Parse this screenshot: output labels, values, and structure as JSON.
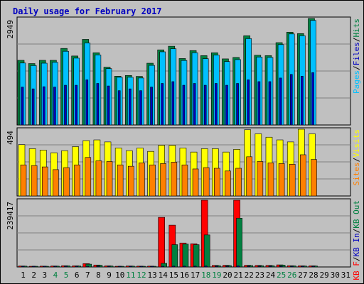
{
  "chart_data": {
    "type": "bar",
    "title": "Daily usage for February 2017",
    "categories": [
      "1",
      "2",
      "3",
      "4",
      "5",
      "6",
      "7",
      "8",
      "9",
      "10",
      "11",
      "12",
      "13",
      "14",
      "15",
      "16",
      "17",
      "18",
      "19",
      "20",
      "21",
      "22",
      "23",
      "24",
      "25",
      "26",
      "27",
      "28",
      "29",
      "30",
      "31"
    ],
    "weekend_days": [
      4,
      5,
      11,
      12,
      18,
      19,
      25,
      26
    ],
    "panels": [
      {
        "name": "pages-files-hits",
        "ymax_label": "2949",
        "ylim": [
          0,
          2949
        ],
        "axis_labels": [
          {
            "text": "Pages",
            "color": "#00c0ff"
          },
          {
            "text": "Files",
            "color": "#0000c0"
          },
          {
            "text": "Hits",
            "color": "#008040"
          }
        ],
        "series": [
          {
            "name": "Hits",
            "color": "#008040",
            "values": [
              1790,
              1700,
              1790,
              1790,
              2120,
              1910,
              2370,
              2000,
              1600,
              1350,
              1370,
              1345,
              1710,
              2080,
              2180,
              1840,
              2060,
              1920,
              2000,
              1830,
              1870,
              2470,
              1930,
              1920,
              2280,
              2570,
              2530,
              2950,
              0,
              0,
              0
            ]
          },
          {
            "name": "Files",
            "color": "#00c0ff",
            "values": [
              1715,
              1645,
              1710,
              1735,
              2040,
              1850,
              2270,
              1940,
              1560,
              1320,
              1320,
              1300,
              1650,
              2025,
              2110,
              1785,
              2000,
              1835,
              1935,
              1755,
              1810,
              2390,
              1880,
              1870,
              2225,
              2520,
              2470,
              2895,
              0,
              0,
              0
            ]
          },
          {
            "name": "Pages",
            "color": "#0000c0",
            "values": [
              1050,
              1000,
              1060,
              1050,
              1100,
              1100,
              1250,
              1150,
              1080,
              950,
              1000,
              950,
              1050,
              1150,
              1200,
              1100,
              1150,
              1100,
              1150,
              1100,
              1150,
              1250,
              1200,
              1200,
              1300,
              1400,
              1350,
              1450,
              0,
              0,
              0
            ]
          }
        ]
      },
      {
        "name": "visits-sites",
        "ymax_label": "494",
        "ylim": [
          0,
          494
        ],
        "axis_labels": [
          {
            "text": "Sites",
            "color": "#ff8000"
          },
          {
            "text": "Visits",
            "color": "#ffff00"
          }
        ],
        "series": [
          {
            "name": "Visits",
            "color": "#ffff00",
            "values": [
              380,
              350,
              340,
              320,
              335,
              365,
              410,
              415,
              400,
              355,
              335,
              355,
              330,
              375,
              375,
              355,
              325,
              350,
              350,
              325,
              345,
              490,
              460,
              435,
              415,
              400,
              494,
              460,
              0,
              0,
              0
            ]
          },
          {
            "name": "Sites",
            "color": "#ff8000",
            "values": [
              230,
              225,
              215,
              195,
              210,
              230,
              285,
              260,
              255,
              230,
              220,
              245,
              230,
              240,
              250,
              230,
              200,
              210,
              205,
              185,
              205,
              290,
              255,
              245,
              240,
              235,
              305,
              270,
              0,
              0,
              0
            ]
          }
        ]
      },
      {
        "name": "kbf-kbin-kbout",
        "ymax_label": "239417",
        "ylim": [
          0,
          239417
        ],
        "axis_labels": [
          {
            "text": "KB F",
            "color": "#ff0000"
          },
          {
            "text": "KB In",
            "color": "#0000c0"
          },
          {
            "text": "KB Out",
            "color": "#008040"
          }
        ],
        "series": [
          {
            "name": "KB F",
            "color": "#ff0000",
            "values": [
              3500,
              2500,
              3000,
              3500,
              4500,
              4000,
              12000,
              7000,
              4000,
              2500,
              3500,
              3000,
              3000,
              178000,
              150000,
              86000,
              83000,
              239417,
              5500,
              6000,
              239417,
              6000,
              5500,
              5500,
              7500,
              4500,
              4000,
              4000,
              0,
              0,
              0
            ]
          },
          {
            "name": "KB Out",
            "color": "#008040",
            "values": [
              3000,
              2000,
              2500,
              3000,
              4000,
              3500,
              10000,
              6000,
              3500,
              2000,
              3000,
              2500,
              2500,
              13000,
              80000,
              82000,
              80000,
              115000,
              4500,
              5000,
              175000,
              5000,
              4500,
              4500,
              6500,
              4000,
              3500,
              3500,
              0,
              0,
              0
            ]
          },
          {
            "name": "KB In",
            "color": "#0000c0",
            "values": [
              1000,
              800,
              900,
              1000,
              1200,
              1100,
              2000,
              1500,
              1000,
              800,
              900,
              800,
              800,
              2000,
              3000,
              3000,
              3000,
              3500,
              1500,
              1500,
              4000,
              1500,
              1500,
              1500,
              2000,
              1200,
              1100,
              1100,
              0,
              0,
              0
            ]
          }
        ]
      }
    ]
  }
}
